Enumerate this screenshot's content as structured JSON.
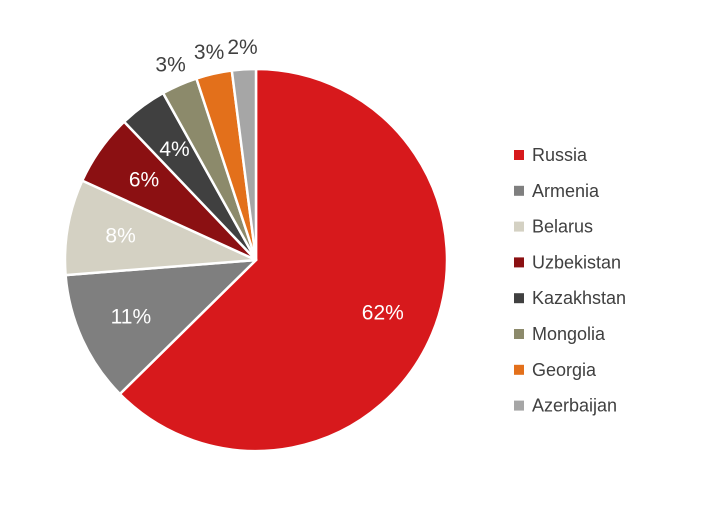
{
  "chart_data": {
    "type": "pie",
    "title": "",
    "categories": [
      "Russia",
      "Armenia",
      "Belarus",
      "Uzbekistan",
      "Kazakhstan",
      "Mongolia",
      "Georgia",
      "Azerbaijan"
    ],
    "values": [
      62,
      11,
      8,
      6,
      4,
      3,
      3,
      2
    ],
    "data_labels": [
      "62%",
      "11%",
      "8%",
      "6%",
      "4%",
      "3%",
      "3%",
      "2%"
    ],
    "colors": [
      "#d7191c",
      "#7f7f7f",
      "#d4d1c3",
      "#8b1012",
      "#404040",
      "#8c8a6b",
      "#e3701b",
      "#a6a6a6"
    ],
    "label_colors": [
      "#ffffff",
      "#ffffff",
      "#ffffff",
      "#ffffff",
      "#ffffff",
      "#404040",
      "#404040",
      "#404040"
    ],
    "label_placement": [
      "inside",
      "inside",
      "inside",
      "inside",
      "inside",
      "outside",
      "outside",
      "outside"
    ],
    "start_angle": "12 o'clock",
    "direction": "clockwise",
    "legend": {
      "position": "right",
      "entries": [
        "Russia",
        "Armenia",
        "Belarus",
        "Uzbekistan",
        "Kazakhstan",
        "Mongolia",
        "Georgia",
        "Azerbaijan"
      ]
    }
  }
}
